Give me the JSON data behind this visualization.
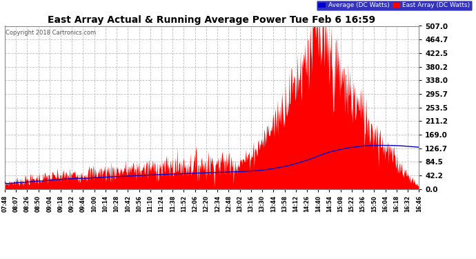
{
  "title": "East Array Actual & Running Average Power Tue Feb 6 16:59",
  "copyright": "Copyright 2018 Cartronics.com",
  "legend_avg": "Average (DC Watts)",
  "legend_east": "East Array (DC Watts)",
  "bg_color": "#ffffff",
  "plot_bg_color": "#ffffff",
  "grid_color": "#aaaaaa",
  "fill_color": "#ff0000",
  "line_color": "#0000cc",
  "title_color": "#000000",
  "tick_color": "#000000",
  "copyright_color": "#555555",
  "yticks": [
    0.0,
    42.2,
    84.5,
    126.7,
    169.0,
    211.2,
    253.5,
    295.7,
    338.0,
    380.2,
    422.5,
    464.7,
    507.0
  ],
  "xtick_labels": [
    "07:48",
    "08:07",
    "08:26",
    "08:50",
    "09:04",
    "09:18",
    "09:32",
    "09:46",
    "10:00",
    "10:14",
    "10:28",
    "10:42",
    "10:56",
    "11:10",
    "11:24",
    "11:38",
    "11:52",
    "12:06",
    "12:20",
    "12:34",
    "12:48",
    "13:02",
    "13:16",
    "13:30",
    "13:44",
    "13:58",
    "14:12",
    "14:26",
    "14:40",
    "14:54",
    "15:08",
    "15:22",
    "15:36",
    "15:50",
    "16:04",
    "16:18",
    "16:32",
    "16:46"
  ],
  "ymin": 0.0,
  "ymax": 507.0
}
